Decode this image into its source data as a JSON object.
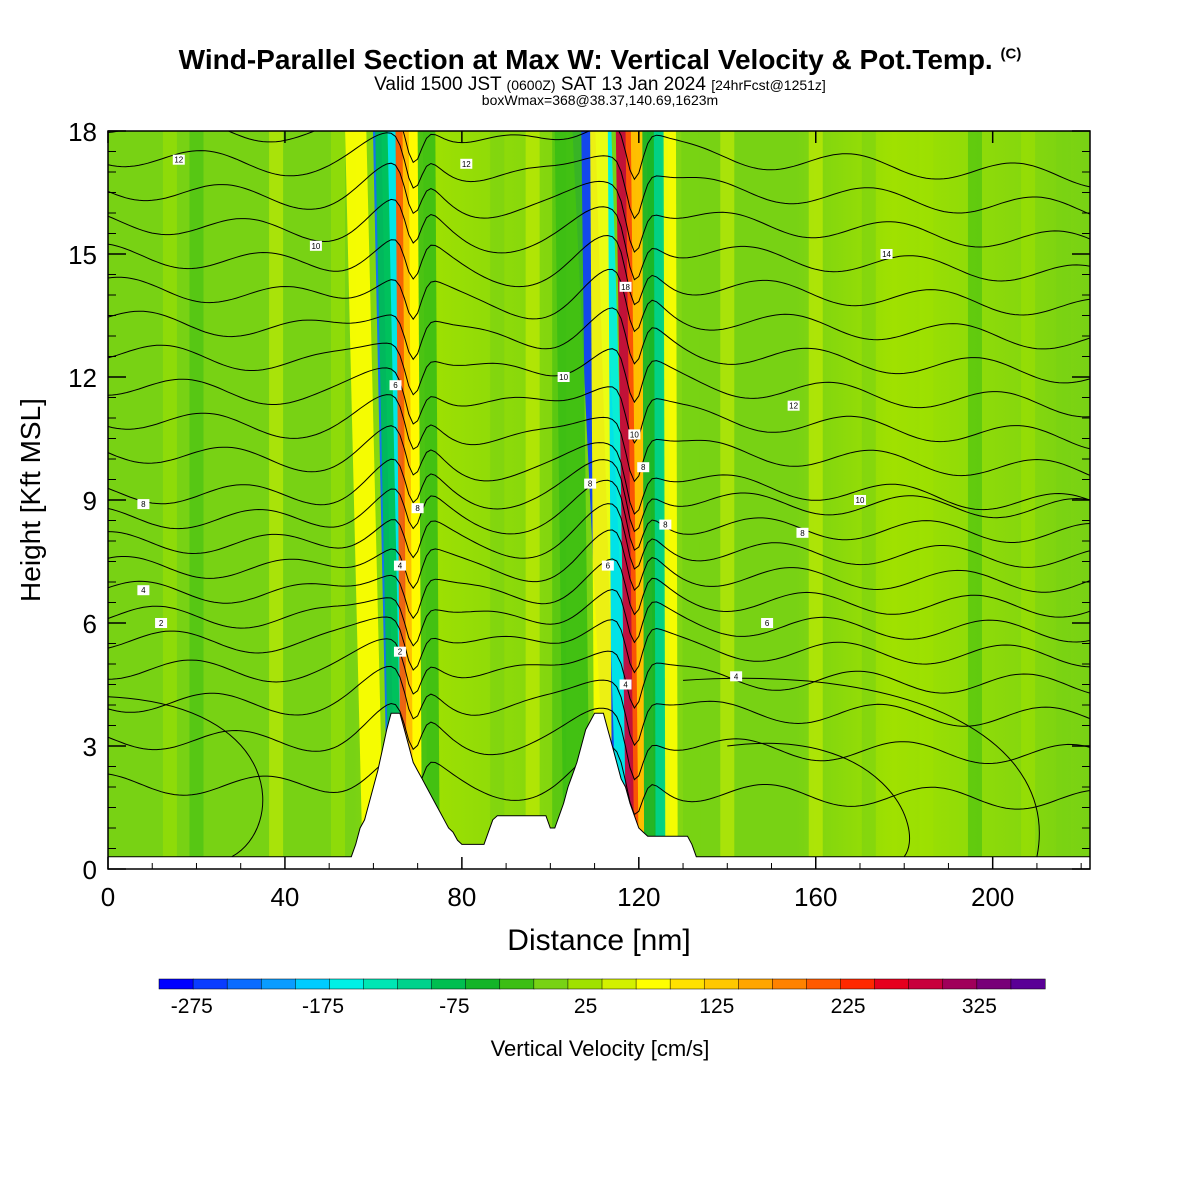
{
  "title": {
    "main": "Wind-Parallel Section at Max W: Vertical Velocity & Pot.Temp.",
    "copyright": "(C)",
    "valid_a": "Valid 1500 JST",
    "valid_utc": "(0600Z)",
    "valid_b": "SAT 13 Jan 2024",
    "fcst": "[24hrFcst@1251z]",
    "box": "boxWmax=368@38.37,140.69,1623m"
  },
  "chart_data": {
    "type": "heatmap",
    "xlabel": "Distance [nm]",
    "ylabel": "Height [Kft MSL]",
    "xlim": [
      0,
      222
    ],
    "ylim": [
      0,
      18
    ],
    "x_ticks": [
      0,
      40,
      80,
      120,
      160,
      200
    ],
    "y_ticks": [
      0,
      3,
      6,
      9,
      12,
      15,
      18
    ],
    "colorbar": {
      "label": "Vertical Velocity [cm/s]",
      "min": -300,
      "max": 375,
      "step": 25,
      "tick_labels": [
        -275,
        -175,
        -75,
        25,
        125,
        225,
        325
      ],
      "colors": [
        "#0000ff",
        "#0a3cff",
        "#0a6cff",
        "#0a9cff",
        "#00ccff",
        "#00f0e6",
        "#00e6b4",
        "#00d28c",
        "#00be50",
        "#14b428",
        "#3cbe14",
        "#78d214",
        "#a0e100",
        "#d2f000",
        "#ffff00",
        "#ffe100",
        "#ffc800",
        "#ffa500",
        "#ff8200",
        "#ff5a00",
        "#ff2800",
        "#e6001e",
        "#c8003c",
        "#a0005a",
        "#780078",
        "#5a0096"
      ]
    },
    "terrain": [
      [
        0,
        0.3
      ],
      [
        55,
        0.3
      ],
      [
        56,
        0.6
      ],
      [
        57,
        1.0
      ],
      [
        58,
        1.2
      ],
      [
        59,
        1.6
      ],
      [
        60,
        2.0
      ],
      [
        61,
        2.4
      ],
      [
        62,
        2.9
      ],
      [
        63,
        3.4
      ],
      [
        64,
        3.8
      ],
      [
        66,
        3.8
      ],
      [
        67,
        3.4
      ],
      [
        68,
        3.0
      ],
      [
        69,
        2.6
      ],
      [
        70,
        2.4
      ],
      [
        71,
        2.2
      ],
      [
        72,
        2.0
      ],
      [
        73,
        1.8
      ],
      [
        74,
        1.6
      ],
      [
        75,
        1.4
      ],
      [
        76,
        1.2
      ],
      [
        77,
        1.0
      ],
      [
        78,
        0.9
      ],
      [
        79,
        0.7
      ],
      [
        80,
        0.6
      ],
      [
        85,
        0.6
      ],
      [
        86,
        0.9
      ],
      [
        87,
        1.2
      ],
      [
        88,
        1.3
      ],
      [
        99,
        1.3
      ],
      [
        100,
        1.0
      ],
      [
        101,
        1.0
      ],
      [
        102,
        1.3
      ],
      [
        103,
        1.6
      ],
      [
        104,
        2.0
      ],
      [
        105,
        2.3
      ],
      [
        106,
        2.6
      ],
      [
        107,
        3.0
      ],
      [
        108,
        3.4
      ],
      [
        109,
        3.6
      ],
      [
        110,
        3.8
      ],
      [
        112,
        3.8
      ],
      [
        113,
        3.4
      ],
      [
        114,
        3.0
      ],
      [
        115,
        2.6
      ],
      [
        116,
        2.2
      ],
      [
        117,
        2.0
      ],
      [
        118,
        1.6
      ],
      [
        119,
        1.3
      ],
      [
        120,
        1.0
      ],
      [
        121,
        0.9
      ],
      [
        122,
        0.8
      ],
      [
        131,
        0.8
      ],
      [
        132,
        0.6
      ],
      [
        133,
        0.3
      ],
      [
        222,
        0.3
      ]
    ],
    "contour_labels": [
      {
        "x": 16,
        "y": 17.3,
        "text": "12"
      },
      {
        "x": 47,
        "y": 15.2,
        "text": "10"
      },
      {
        "x": 81,
        "y": 17.2,
        "text": "12"
      },
      {
        "x": 176,
        "y": 15.0,
        "text": "14"
      },
      {
        "x": 117,
        "y": 14.2,
        "text": "18"
      },
      {
        "x": 65,
        "y": 11.8,
        "text": "6"
      },
      {
        "x": 103,
        "y": 12.0,
        "text": "10"
      },
      {
        "x": 119,
        "y": 10.6,
        "text": "10"
      },
      {
        "x": 121,
        "y": 9.8,
        "text": "8"
      },
      {
        "x": 109,
        "y": 9.4,
        "text": "8"
      },
      {
        "x": 155,
        "y": 11.3,
        "text": "12"
      },
      {
        "x": 8,
        "y": 8.9,
        "text": "8"
      },
      {
        "x": 70,
        "y": 8.8,
        "text": "8"
      },
      {
        "x": 126,
        "y": 8.4,
        "text": "8"
      },
      {
        "x": 170,
        "y": 9.0,
        "text": "10"
      },
      {
        "x": 157,
        "y": 8.2,
        "text": "8"
      },
      {
        "x": 8,
        "y": 6.8,
        "text": "4"
      },
      {
        "x": 66,
        "y": 7.4,
        "text": "4"
      },
      {
        "x": 113,
        "y": 7.4,
        "text": "6"
      },
      {
        "x": 12,
        "y": 6.0,
        "text": "2"
      },
      {
        "x": 149,
        "y": 6.0,
        "text": "6"
      },
      {
        "x": 66,
        "y": 5.3,
        "text": "2"
      },
      {
        "x": 117,
        "y": 4.5,
        "text": "4"
      },
      {
        "x": 142,
        "y": 4.7,
        "text": "4"
      }
    ]
  }
}
